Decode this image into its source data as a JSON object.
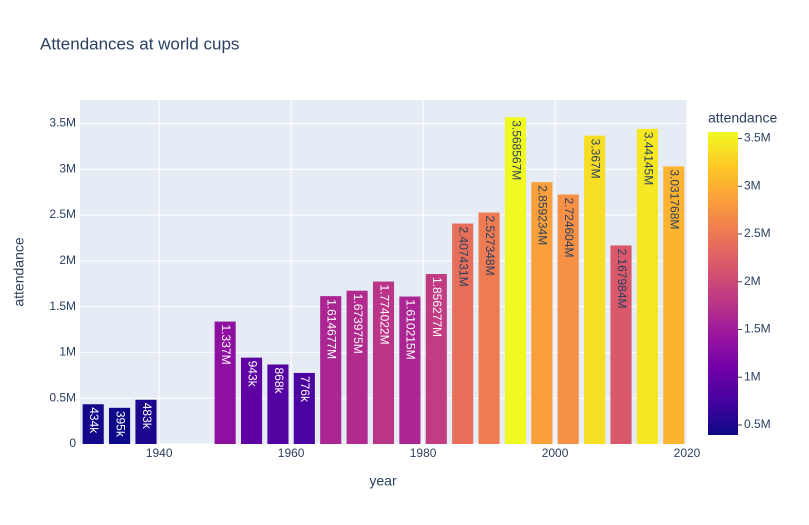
{
  "chart_data": {
    "type": "bar",
    "title": "Attendances at world cups",
    "x_label": "year",
    "y_label": "attendance",
    "x": [
      1930,
      1934,
      1938,
      1950,
      1954,
      1958,
      1962,
      1966,
      1970,
      1974,
      1978,
      1982,
      1986,
      1990,
      1994,
      1998,
      2002,
      2006,
      2010,
      2014,
      2018
    ],
    "values": [
      434000,
      395000,
      483000,
      1337000,
      943000,
      868000,
      776000,
      1614677,
      1673975,
      1774022,
      1610215,
      1856277,
      2407431,
      2527348,
      3568567,
      2859234,
      2724604,
      3367000,
      2167984,
      3441450,
      3031768
    ],
    "value_labels": [
      "434k",
      "395k",
      "483k",
      "1.337M",
      "943k",
      "868k",
      "776k",
      "1.614677M",
      "1.673975M",
      "1.774022M",
      "1.610215M",
      "1.856277M",
      "2.407431M",
      "2.527348M",
      "3.568567M",
      "2.859234M",
      "2.724604M",
      "3.367M",
      "2.167984M",
      "3.44145M",
      "3.031768M"
    ],
    "xlim": [
      1928,
      2020
    ],
    "xticks": [
      1940,
      1960,
      1980,
      2000,
      2020
    ],
    "ylim": [
      0,
      3756386
    ],
    "yticks": [
      0,
      {
        "value": 500000,
        "label": "0.5M"
      },
      {
        "value": 1000000,
        "label": "1M"
      },
      {
        "value": 1500000,
        "label": "1.5M"
      },
      {
        "value": 2000000,
        "label": "2M"
      },
      {
        "value": 2500000,
        "label": "2.5M"
      },
      {
        "value": 3000000,
        "label": "3M"
      },
      {
        "value": 3500000,
        "label": "3.5M"
      }
    ],
    "grid": true,
    "colorscale": [
      "#0d0887",
      "#46039f",
      "#7201a8",
      "#9c179e",
      "#bd3786",
      "#d8576b",
      "#ed7953",
      "#fb9f3a",
      "#fdca26",
      "#f0f921"
    ],
    "colorbar": {
      "title": "attendance",
      "lim": [
        395000,
        3568567
      ],
      "ticks": [
        {
          "value": 500000,
          "label": "0.5M"
        },
        {
          "value": 1000000,
          "label": "1M"
        },
        {
          "value": 1500000,
          "label": "1.5M"
        },
        {
          "value": 2000000,
          "label": "2M"
        },
        {
          "value": 2500000,
          "label": "2.5M"
        },
        {
          "value": 3000000,
          "label": "3M"
        },
        {
          "value": 3500000,
          "label": "3.5M"
        }
      ]
    }
  }
}
